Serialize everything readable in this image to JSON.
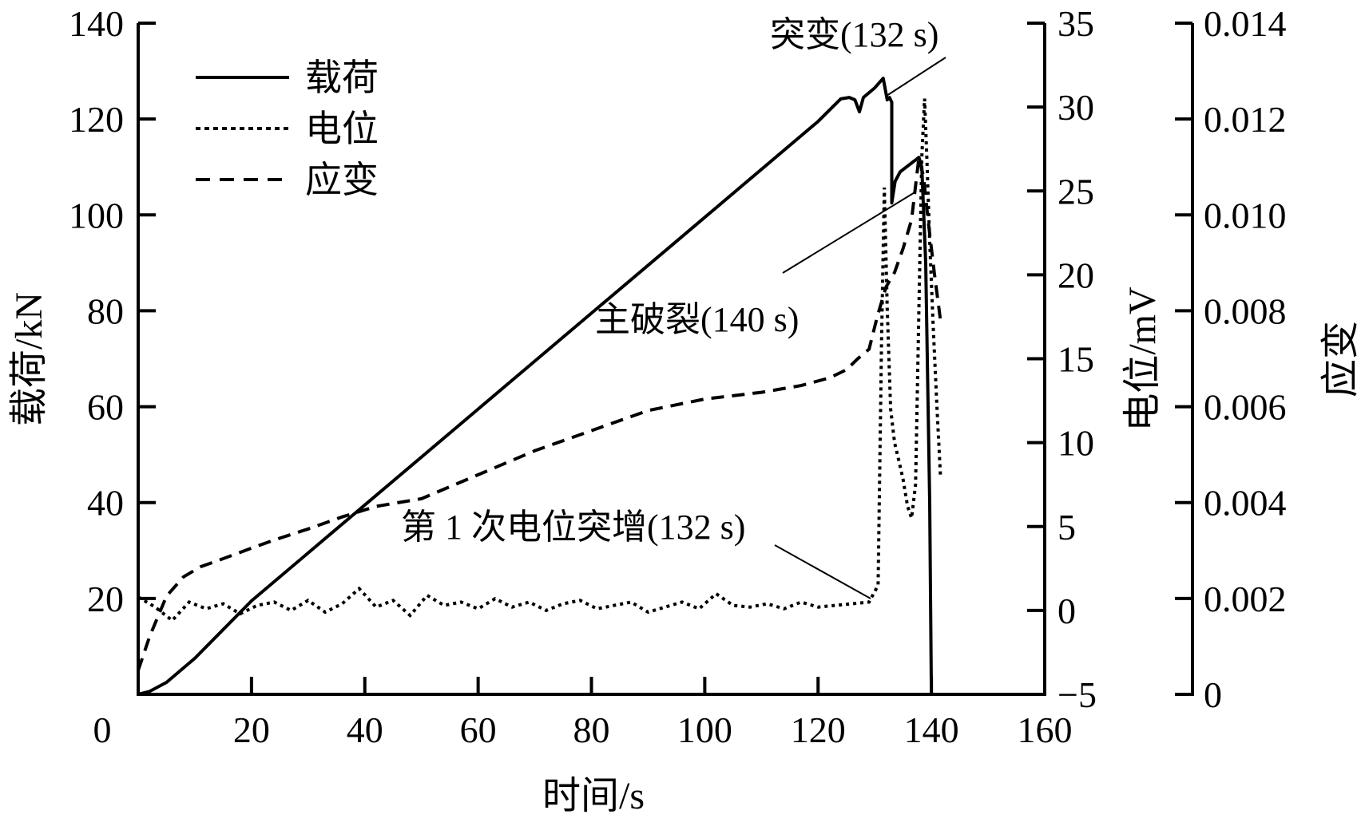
{
  "chart_data": {
    "type": "line",
    "title": "",
    "xlabel": "时间/s",
    "ylabel": "载荷/kN",
    "y2label": "电位/mV",
    "y3label": "应变",
    "xlim": [
      0,
      160
    ],
    "ylim": [
      0,
      140
    ],
    "y2lim": [
      -5,
      35
    ],
    "y3lim": [
      0,
      0.014
    ],
    "grid": false,
    "legend_position": "upper-left",
    "x_ticks": [
      "0",
      "20",
      "40",
      "60",
      "80",
      "100",
      "120",
      "140",
      "160"
    ],
    "y_ticks": [
      "140",
      "120",
      "100",
      "80",
      "60",
      "40",
      "20"
    ],
    "y_tick_values": [
      140,
      120,
      100,
      80,
      60,
      40,
      20
    ],
    "y2_ticks": [
      "35",
      "30",
      "25",
      "20",
      "15",
      "10",
      "5",
      "0",
      "−5"
    ],
    "y2_tick_values": [
      35,
      30,
      25,
      20,
      15,
      10,
      5,
      0,
      -5
    ],
    "y3_ticks": [
      "0.014",
      "0.012",
      "0.010",
      "0.008",
      "0.006",
      "0.004",
      "0.002",
      "0"
    ],
    "y3_tick_values": [
      0.014,
      0.012,
      0.01,
      0.008,
      0.006,
      0.004,
      0.002,
      0
    ],
    "legend": [
      "载荷",
      "电位",
      "应变"
    ],
    "series": [
      {
        "name": "载荷",
        "axis": "left",
        "style": "solid",
        "x": [
          0,
          2,
          5,
          10,
          20,
          40,
          60,
          80,
          100,
          120,
          124,
          125.5,
          126.5,
          127.3,
          128,
          130,
          131.5,
          132.2,
          132.6,
          133.0,
          133.0,
          133.6,
          134.5,
          137.8,
          138.3,
          139.0,
          139.7,
          140.0
        ],
        "y": [
          0,
          0.6,
          2.5,
          7.5,
          19.5,
          39.5,
          59.5,
          79.5,
          99.5,
          119.5,
          124.2,
          124.5,
          124.0,
          121.5,
          124.5,
          126.5,
          128.5,
          124.0,
          124.5,
          123.5,
          102.5,
          107,
          109,
          112,
          110,
          90,
          40,
          0
        ]
      },
      {
        "name": "电位",
        "axis": "right1",
        "style": "dotted",
        "x": [
          0,
          3,
          6,
          9,
          12,
          15,
          18,
          21,
          24,
          27,
          30,
          33,
          36,
          39,
          42,
          45,
          48,
          51,
          54,
          57,
          60,
          63,
          66,
          69,
          72,
          75,
          78,
          81,
          84,
          87,
          90,
          93,
          96,
          99,
          102,
          105,
          108,
          111,
          114,
          117,
          120,
          123,
          126,
          129,
          130.6,
          131.2,
          131.7,
          132.2,
          132.8,
          133.5,
          134.2,
          135.0,
          135.8,
          136.5,
          137.2,
          137.8,
          138.3,
          138.8,
          139.2,
          139.7,
          140.3,
          141.0,
          141.6
        ],
        "y": [
          0.8,
          0.2,
          -0.6,
          0.5,
          0.1,
          0.4,
          -0.2,
          0.3,
          0.5,
          0.0,
          0.6,
          -0.1,
          0.4,
          1.3,
          0.2,
          0.6,
          -0.3,
          0.9,
          0.3,
          0.5,
          0.1,
          0.7,
          0.2,
          0.5,
          0.0,
          0.4,
          0.6,
          0.1,
          0.3,
          0.5,
          -0.1,
          0.2,
          0.5,
          0.1,
          1.0,
          0.3,
          0.2,
          0.4,
          0.1,
          0.5,
          0.2,
          0.3,
          0.4,
          0.5,
          1.5,
          16,
          25.2,
          18,
          12,
          10,
          9,
          7.8,
          6.2,
          5.5,
          7.5,
          18,
          27,
          30.5,
          27,
          22,
          17,
          12,
          8
        ]
      },
      {
        "name": "应变",
        "axis": "right2",
        "style": "dashed",
        "x": [
          0,
          2,
          5,
          8,
          11,
          15,
          20,
          24,
          30,
          36,
          42,
          45,
          50,
          60,
          70,
          80,
          90,
          100,
          110,
          117,
          122,
          125,
          127,
          129,
          130.5,
          132,
          133.5,
          135,
          136.5,
          137.8,
          138.6,
          139.5,
          140.5,
          141.6
        ],
        "y": [
          0.0005,
          0.0012,
          0.00205,
          0.00245,
          0.00266,
          0.00283,
          0.00305,
          0.00322,
          0.00345,
          0.0037,
          0.00392,
          0.00398,
          0.00408,
          0.00458,
          0.00508,
          0.0055,
          0.00592,
          0.00616,
          0.0063,
          0.00644,
          0.0066,
          0.00677,
          0.007,
          0.0072,
          0.0079,
          0.0085,
          0.0088,
          0.0093,
          0.0099,
          0.0112,
          0.0108,
          0.0098,
          0.0088,
          0.0078
        ]
      }
    ],
    "annotations": [
      {
        "text": "突变(132 s)",
        "x": 132,
        "target": "载荷"
      },
      {
        "text": "主破裂(140 s)",
        "x": 140,
        "target": "载荷"
      },
      {
        "text": "第 1 次电位突增(132 s)",
        "x": 132,
        "target": "电位"
      }
    ]
  }
}
